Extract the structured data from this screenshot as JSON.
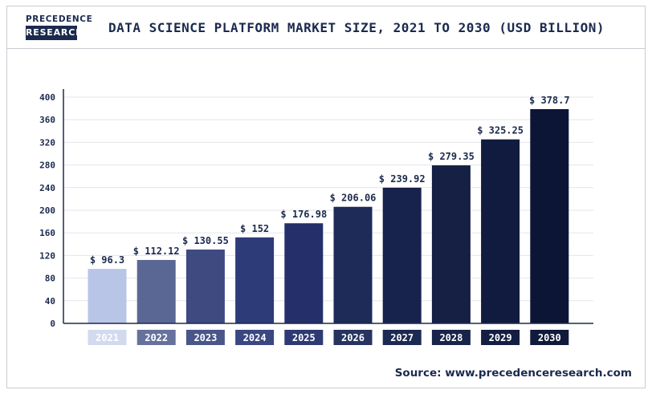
{
  "logo": {
    "line1": "PRECEDENCE",
    "line2": "RESEARCH"
  },
  "source": "Source: www.precedenceresearch.com",
  "chart_data": {
    "type": "bar",
    "title": "DATA SCIENCE PLATFORM MARKET SIZE, 2021 TO 2030 (USD BILLION)",
    "xlabel": "",
    "ylabel": "",
    "categories": [
      "2021",
      "2022",
      "2023",
      "2024",
      "2025",
      "2026",
      "2027",
      "2028",
      "2029",
      "2030"
    ],
    "values": [
      96.3,
      112.12,
      130.55,
      152,
      176.98,
      206.06,
      239.92,
      279.35,
      325.25,
      378.7
    ],
    "data_labels": [
      "$ 96.3",
      "$ 112.12",
      "$ 130.55",
      "$ 152",
      "$ 176.98",
      "$ 206.06",
      "$ 239.92",
      "$ 279.35",
      "$ 325.25",
      "$ 378.7"
    ],
    "ylim": [
      0,
      400
    ],
    "yticks": [
      0,
      40,
      80,
      120,
      160,
      200,
      240,
      280,
      320,
      360,
      400
    ],
    "grid": true,
    "legend": "none",
    "bar_colors": [
      "#b9c5e6",
      "#5a6794",
      "#3e4a80",
      "#2d3b78",
      "#25306a",
      "#1e2b58",
      "#17234d",
      "#152044",
      "#111b3f",
      "#0c1536"
    ],
    "label_colors": [
      "#d3daee",
      "#66729c",
      "#4a5689",
      "#3a4782",
      "#2e3a73",
      "#273460",
      "#1c2952",
      "#182449",
      "#141e43",
      "#101a3b"
    ]
  }
}
